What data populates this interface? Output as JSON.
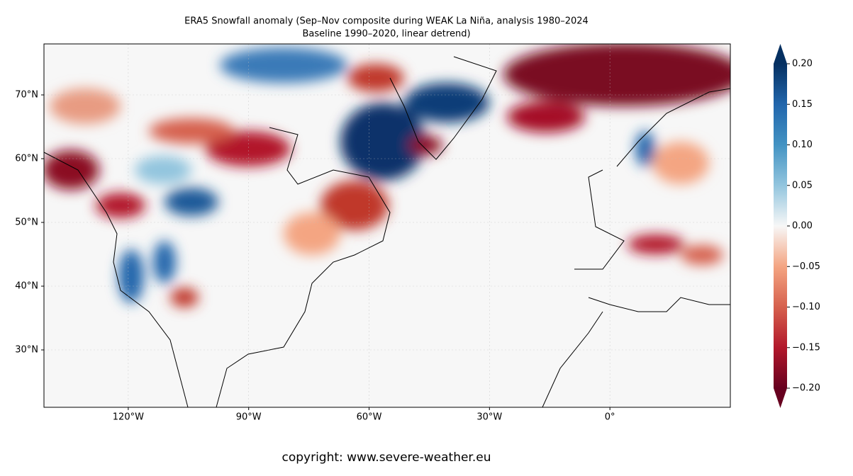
{
  "title": [
    "ERA5 Snowfall anomaly  (Sep–Nov composite during WEAK La Niña, analysis 1980–2024",
    "Baseline 1990–2020, linear detrend)"
  ],
  "map": {
    "xlim": [
      -141,
      30
    ],
    "ylim": [
      21,
      78
    ],
    "xticks": [
      {
        "value": -120,
        "label": "120°W"
      },
      {
        "value": -90,
        "label": "90°W"
      },
      {
        "value": -60,
        "label": "60°W"
      },
      {
        "value": -30,
        "label": "30°W"
      },
      {
        "value": 0,
        "label": "0°"
      }
    ],
    "yticks": [
      {
        "value": 30,
        "label": "30°N"
      },
      {
        "value": 40,
        "label": "40°N"
      },
      {
        "value": 50,
        "label": "50°N"
      },
      {
        "value": 60,
        "label": "60°N"
      },
      {
        "value": 70,
        "label": "70°N"
      }
    ],
    "grid": true
  },
  "colorbar": {
    "lim": [
      -0.2,
      0.2
    ],
    "ticks": [
      {
        "value": 0.2,
        "label": "0.20"
      },
      {
        "value": 0.15,
        "label": "0.15"
      },
      {
        "value": 0.1,
        "label": "0.10"
      },
      {
        "value": 0.05,
        "label": "0.05"
      },
      {
        "value": 0,
        "label": "0.00"
      },
      {
        "value": -0.05,
        "label": "−0.05"
      },
      {
        "value": -0.1,
        "label": "−0.10"
      },
      {
        "value": -0.15,
        "label": "−0.15"
      },
      {
        "value": -0.2,
        "label": "−0.20"
      }
    ]
  },
  "copyright": "copyright: www.severe-weather.eu"
}
